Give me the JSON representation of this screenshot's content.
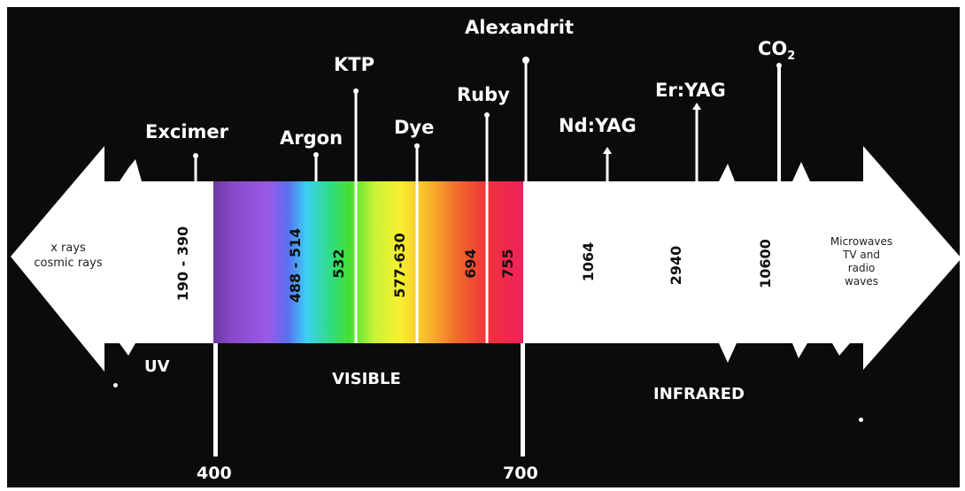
{
  "lasers": {
    "excimer": "Excimer",
    "argon": "Argon",
    "ktp": "KTP",
    "dye": "Dye",
    "ruby": "Ruby",
    "alexandrite": "Alexandrit",
    "ndyag": "Nd:YAG",
    "eryag": "Er:YAG",
    "co2_main": "CO",
    "co2_sub": "2"
  },
  "wavelengths": {
    "excimer": "190 - 390",
    "argon": "488 - 514",
    "ktp": "532",
    "dye": "577-630",
    "ruby": "694",
    "alexandrite": "755",
    "ndyag": "1064",
    "eryag": "2940",
    "co2": "10600"
  },
  "regions": {
    "uv": "UV",
    "visible": "VISIBLE",
    "infrared": "INFRARED"
  },
  "bounds": {
    "start": "400",
    "end": "700"
  },
  "sides": {
    "left": "x rays\ncosmic rays",
    "right": "Microwaves\nTV and\nradio\nwaves"
  },
  "colors": {
    "background": "#0b0b0b",
    "band": "#ffffff",
    "text": "#ffffff",
    "spectrum": [
      "#7a3fb0",
      "#9b55e0",
      "#4f6cf2",
      "#33c8f2",
      "#32d26a",
      "#b5f23a",
      "#f6f232",
      "#f6c82a",
      "#f39a2a",
      "#f2602a",
      "#f2303a",
      "#f01f52"
    ]
  }
}
